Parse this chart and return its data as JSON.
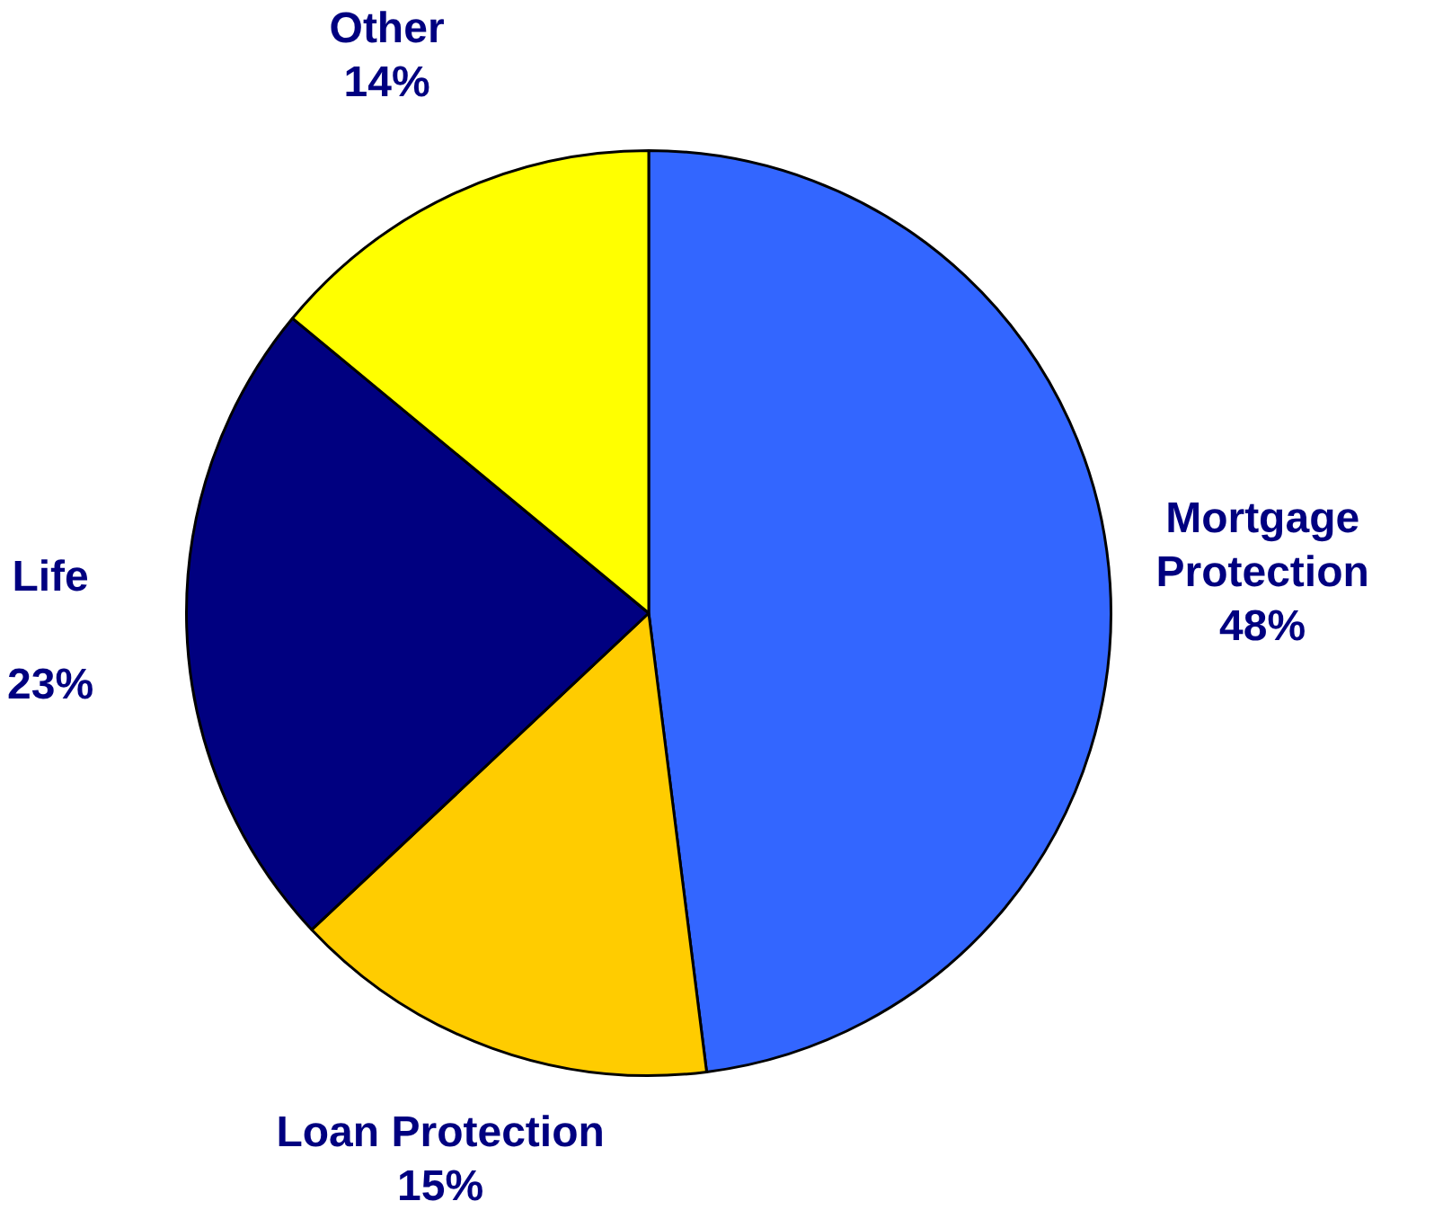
{
  "chart_data": {
    "type": "pie",
    "categories": [
      "Mortgage Protection",
      "Loan Protection",
      "Life",
      "Other"
    ],
    "values": [
      48,
      15,
      23,
      14
    ],
    "value_labels": [
      "48%",
      "15%",
      "23%",
      "14%"
    ],
    "colors": [
      "#3366ff",
      "#ffcc00",
      "#000080",
      "#ffff00"
    ],
    "legend": false
  }
}
